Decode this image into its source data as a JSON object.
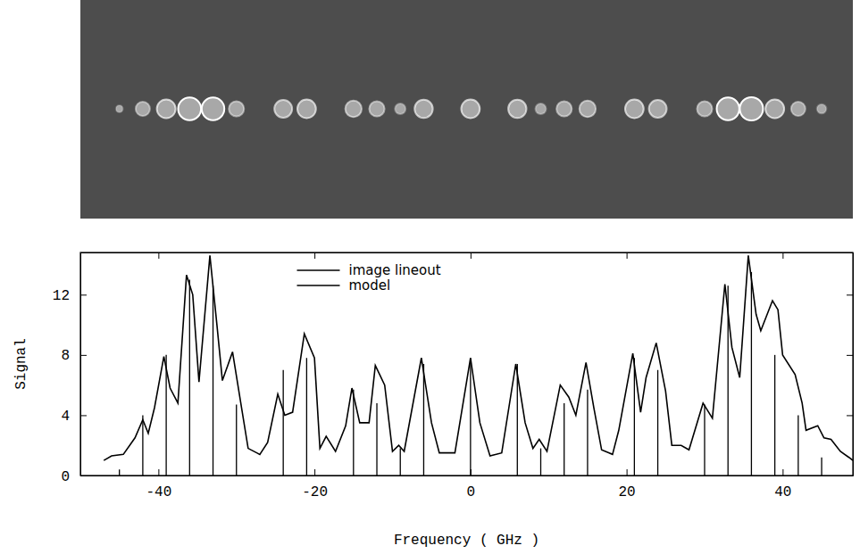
{
  "chart_data": {
    "type": "line",
    "xlabel": "Frequency ( GHz )",
    "ylabel": "Signal",
    "xlim": [
      -50,
      49
    ],
    "ylim": [
      0,
      14.8
    ],
    "xticks": [
      -40,
      -20,
      0,
      20,
      40
    ],
    "yticks": [
      0,
      4,
      8,
      12
    ],
    "legend": "top",
    "series": [
      {
        "name": "image lineout",
        "type": "line",
        "color": "#000000",
        "x": [
          -47,
          -46,
          -44.5,
          -43,
          -42,
          -41.3,
          -40.5,
          -39.3,
          -38.5,
          -37.5,
          -36.4,
          -35.6,
          -34.8,
          -33.4,
          -32.5,
          -31.8,
          -30.5,
          -29.5,
          -28.5,
          -27,
          -26,
          -24.7,
          -23.8,
          -22.8,
          -21.3,
          -20,
          -19.3,
          -18.5,
          -17.3,
          -16,
          -15.2,
          -14.2,
          -13,
          -12.2,
          -11,
          -10,
          -9.2,
          -8.5,
          -6.3,
          -5,
          -4,
          -2,
          0,
          1.2,
          2.5,
          4,
          5.8,
          7,
          8,
          8.8,
          9.8,
          11.5,
          12.6,
          13.5,
          14.8,
          15.8,
          16.8,
          18.2,
          19,
          20.8,
          21.8,
          22.5,
          23.8,
          25,
          25.8,
          27,
          28,
          29.8,
          31,
          32.6,
          33.5,
          34.5,
          35.6,
          36.6,
          37.2,
          38.7,
          39.4,
          40,
          41.6,
          42.5,
          43,
          44.5,
          45.3,
          46.2,
          47.4,
          48.5,
          49
        ],
        "values": [
          1.0,
          1.3,
          1.4,
          2.5,
          3.7,
          2.8,
          4.5,
          7.9,
          5.8,
          4.8,
          13.3,
          12.0,
          6.2,
          14.6,
          10,
          6.3,
          8.2,
          5,
          1.8,
          1.4,
          2.2,
          5.4,
          4,
          4.2,
          9.4,
          7.8,
          1.8,
          2.6,
          1.6,
          3.3,
          5.8,
          3.5,
          3.5,
          7.3,
          6,
          1.6,
          2.0,
          1.6,
          7.8,
          3.5,
          1.5,
          1.5,
          7.8,
          3.5,
          1.3,
          1.5,
          7.4,
          3.5,
          1.8,
          2.4,
          1.6,
          6,
          5.2,
          4,
          7.5,
          4.5,
          1.7,
          1.4,
          3,
          8.1,
          4.2,
          6.5,
          8.8,
          5.6,
          2,
          2,
          1.7,
          4.8,
          3.8,
          12.7,
          8.5,
          6.5,
          14.6,
          10.7,
          9.6,
          11.6,
          11,
          8,
          6.7,
          4.8,
          3,
          3.3,
          2.5,
          2.4,
          1.6,
          1.2,
          1.0
        ]
      },
      {
        "name": "model",
        "type": "stem",
        "color": "#000000",
        "x": [
          -45,
          -42,
          -39,
          -36,
          -33,
          -30,
          -24,
          -21,
          -15,
          -12,
          -9,
          -6,
          0,
          6,
          9,
          12,
          15,
          21,
          24,
          30,
          33,
          36,
          39,
          42,
          45
        ],
        "values": [
          0.4,
          4,
          8,
          13,
          12.6,
          4.7,
          7,
          7.8,
          5.7,
          4.8,
          1.8,
          7.4,
          7.8,
          7.4,
          1.8,
          4.8,
          5.7,
          7.8,
          7,
          4.7,
          12.6,
          13.5,
          8,
          4,
          1.2
        ]
      }
    ]
  }
}
